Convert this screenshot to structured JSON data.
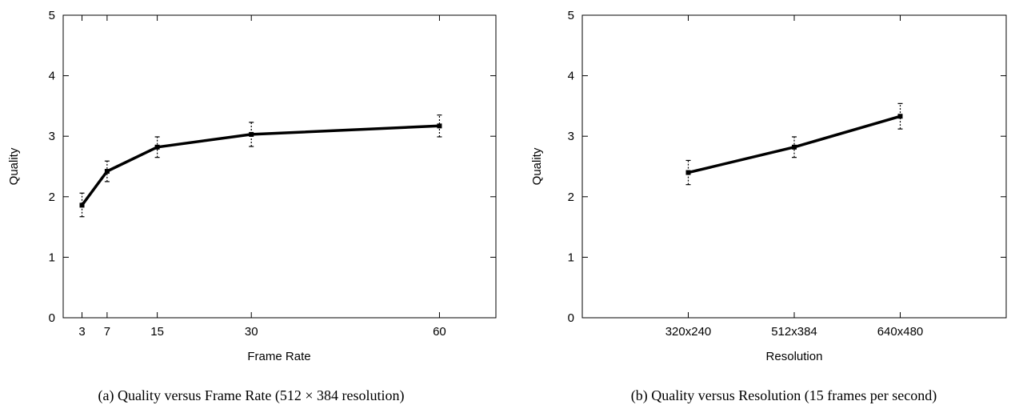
{
  "chart_data": [
    {
      "type": "line",
      "caption": "(a) Quality versus Frame Rate (512 × 384 resolution)",
      "xlabel": "Frame Rate",
      "ylabel": "Quality",
      "xlim": [
        0,
        69
      ],
      "ylim": [
        0,
        5
      ],
      "x_ticks": [
        3,
        7,
        15,
        30,
        60
      ],
      "y_ticks": [
        0,
        1,
        2,
        3,
        4,
        5
      ],
      "grid": false,
      "series": [
        {
          "x": [
            3,
            7,
            15,
            30,
            60
          ],
          "values": [
            1.86,
            2.42,
            2.82,
            3.03,
            3.17
          ],
          "err_low": [
            1.67,
            2.25,
            2.65,
            2.83,
            2.99
          ],
          "err_high": [
            2.06,
            2.59,
            2.99,
            3.23,
            3.35
          ]
        }
      ]
    },
    {
      "type": "line",
      "caption": "(b) Quality versus Resolution (15 frames per second)",
      "xlabel": "Resolution",
      "ylabel": "Quality",
      "categories": [
        "320x240",
        "512x384",
        "640x480"
      ],
      "xlim": [
        0,
        4
      ],
      "x_positions": [
        1,
        2,
        3
      ],
      "ylim": [
        0,
        5
      ],
      "y_ticks": [
        0,
        1,
        2,
        3,
        4,
        5
      ],
      "grid": false,
      "series": [
        {
          "values": [
            2.4,
            2.82,
            3.33
          ],
          "err_low": [
            2.2,
            2.65,
            3.12
          ],
          "err_high": [
            2.6,
            2.99,
            3.54
          ]
        }
      ]
    }
  ]
}
